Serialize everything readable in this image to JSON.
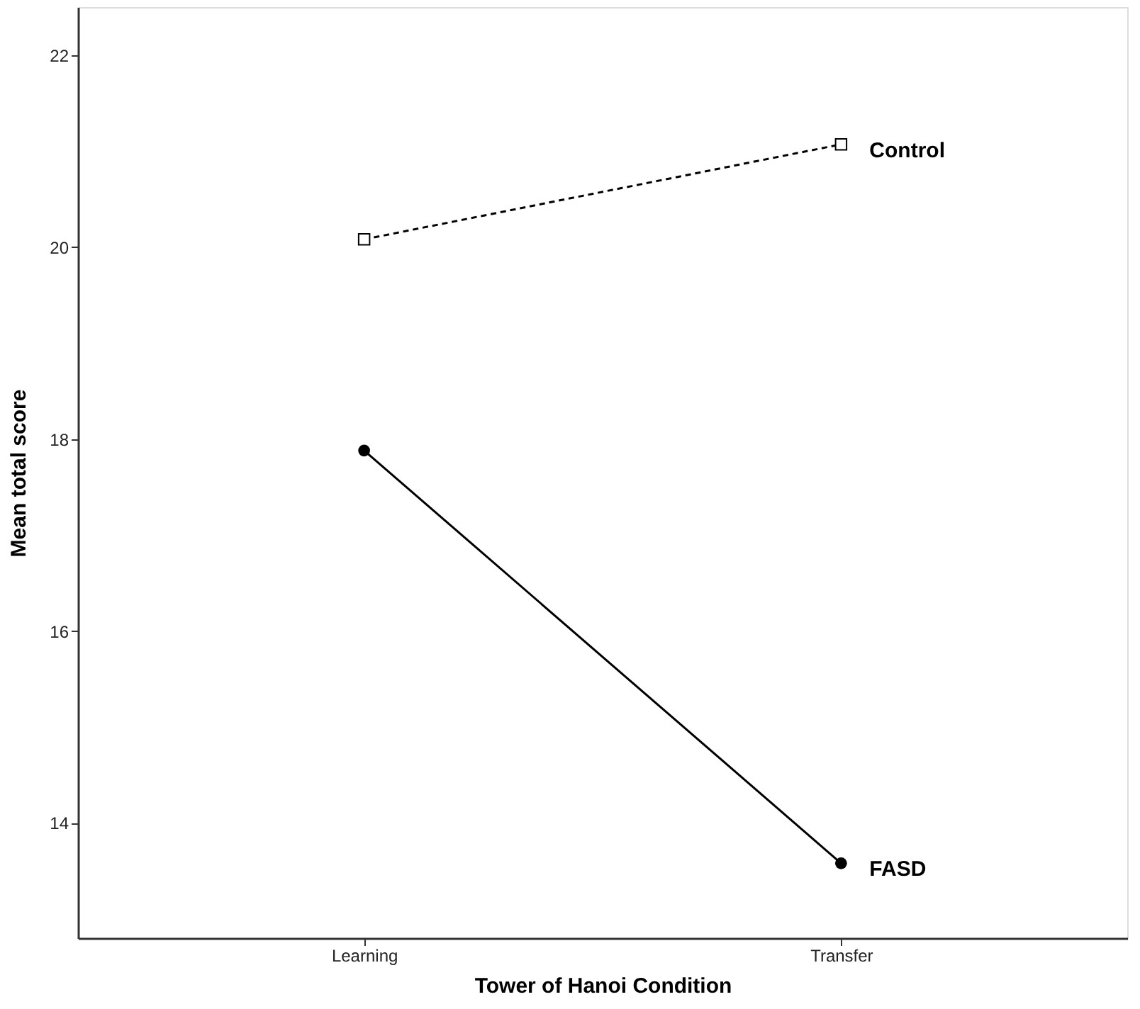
{
  "chart_data": {
    "type": "line",
    "xlabel": "Tower of Hanoi Condition",
    "ylabel": "Mean total score",
    "categories": [
      "Learning",
      "Transfer"
    ],
    "ylim": [
      12.8,
      22.5
    ],
    "yticks": [
      14,
      16,
      18,
      20,
      22
    ],
    "grid": false,
    "series": [
      {
        "name": "Control",
        "color": "#000000",
        "values": [
          20.08,
          21.07
        ],
        "marker": "square",
        "line_style": "dashed"
      },
      {
        "name": "FASD",
        "color": "#000000",
        "values": [
          17.88,
          13.58
        ],
        "marker": "circle",
        "line_style": "solid"
      }
    ]
  }
}
